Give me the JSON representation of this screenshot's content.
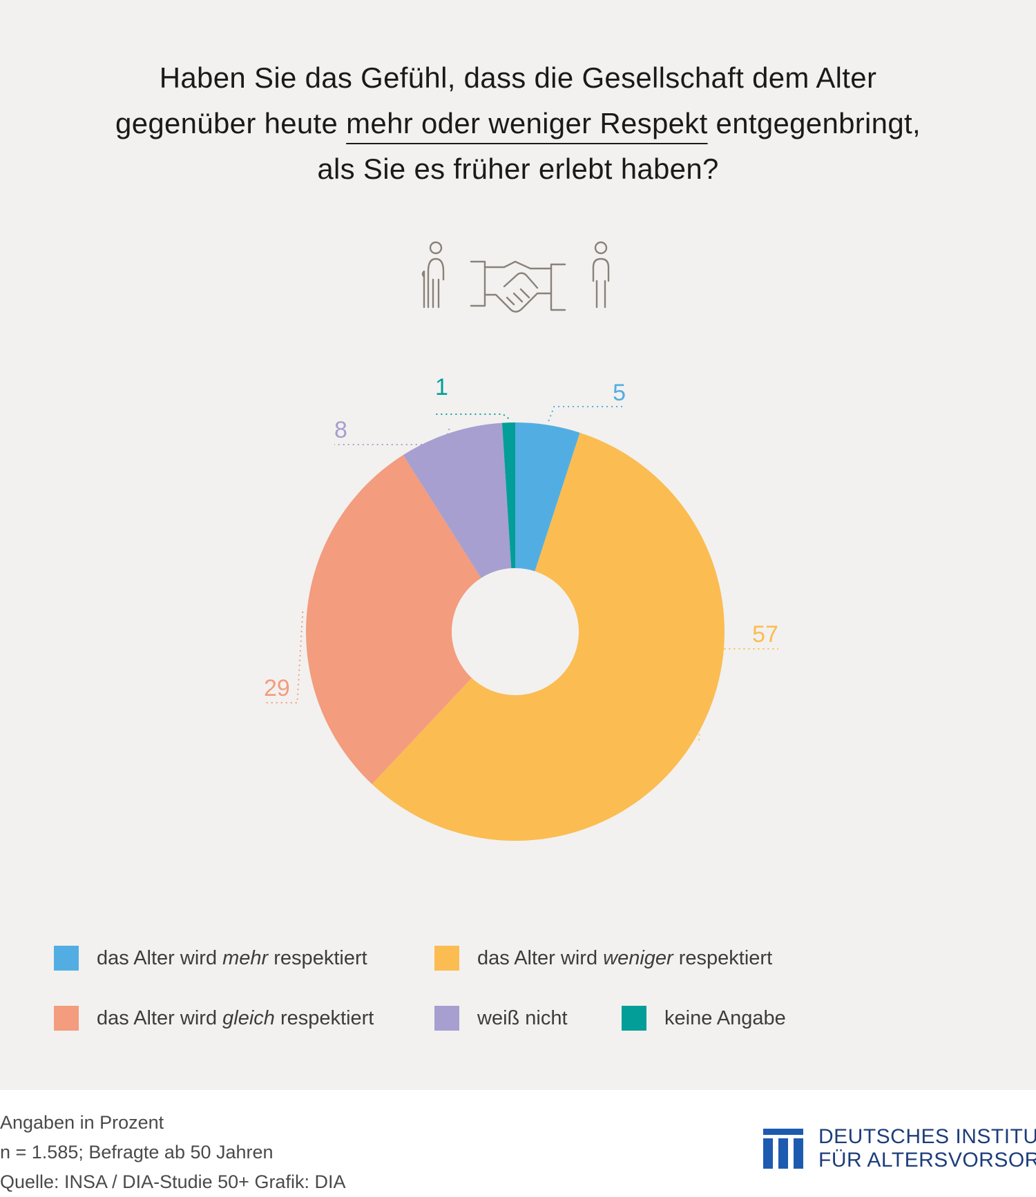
{
  "title": {
    "line1": "Haben Sie das Gefühl, dass die Gesellschaft dem Alter",
    "line2_pre": "gegenüber heute ",
    "line2_underlined": "mehr oder weniger Respekt",
    "line2_post": " entgegenbringt,",
    "line3": "als Sie es früher erlebt haben?"
  },
  "pictogram": "elderly-person-handshake-younger-person-icon",
  "chart_data": {
    "type": "pie",
    "variant": "donut",
    "slices": [
      {
        "label": "das Alter wird mehr respektiert",
        "value": 5,
        "color": "#52aee2"
      },
      {
        "label": "das Alter wird weniger respektiert",
        "value": 57,
        "color": "#fbbc52"
      },
      {
        "label": "das Alter wird gleich respektiert",
        "value": 29,
        "color": "#f39c7e"
      },
      {
        "label": "weiß nicht",
        "value": 8,
        "color": "#a79fd0"
      },
      {
        "label": "keine Angabe",
        "value": 1,
        "color": "#049e98"
      }
    ],
    "data_labels": [
      "5",
      "57",
      "29",
      "8",
      "1"
    ],
    "unit": "Prozent"
  },
  "legend": [
    {
      "pre": "das Alter wird ",
      "em": "mehr",
      "post": " respektiert",
      "color": "#52aee2"
    },
    {
      "pre": "das Alter wird ",
      "em": "weniger",
      "post": " respektiert",
      "color": "#fbbc52"
    },
    {
      "pre": "das Alter wird ",
      "em": "gleich",
      "post": " respektiert",
      "color": "#f39c7e"
    },
    {
      "pre": "weiß nicht",
      "em": "",
      "post": "",
      "color": "#a79fd0"
    },
    {
      "pre": "keine Angabe",
      "em": "",
      "post": "",
      "color": "#049e98"
    }
  ],
  "footer": {
    "line1": "Angaben in Prozent",
    "line2": "n = 1.585; Befragte ab 50 Jahren",
    "line3": "Quelle: INSA / DIA-Studie 50+  Grafik: DIA"
  },
  "logo": {
    "line1": "DEUTSCHES INSTITUT",
    "line2": "FÜR ALTERSVORSORGE",
    "color": "#1d5bb0"
  }
}
